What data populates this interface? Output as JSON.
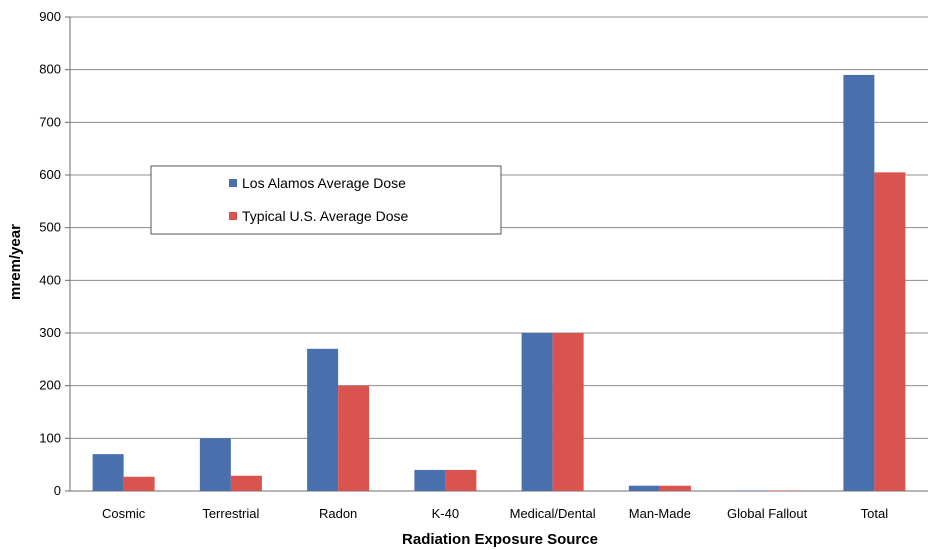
{
  "chart_data": {
    "type": "bar",
    "title": "",
    "xlabel": "Radiation Exposure Source",
    "ylabel": "mrem/year",
    "ylim": [
      0,
      900
    ],
    "yticks": [
      0,
      100,
      200,
      300,
      400,
      500,
      600,
      700,
      800,
      900
    ],
    "grid": true,
    "legend_position": "left-middle",
    "categories": [
      "Cosmic",
      "Terrestrial",
      "Radon",
      "K-40",
      "Medical/Dental",
      "Man-Made",
      "Global Fallout",
      "Total"
    ],
    "series": [
      {
        "name": "Los Alamos Average Dose",
        "color": "#4a6fad",
        "values": [
          70,
          100,
          270,
          40,
          300,
          10,
          1,
          790
        ]
      },
      {
        "name": "Typical U.S. Average Dose",
        "color": "#d9534f",
        "values": [
          27,
          29,
          200,
          40,
          300,
          10,
          1,
          605
        ]
      }
    ]
  }
}
